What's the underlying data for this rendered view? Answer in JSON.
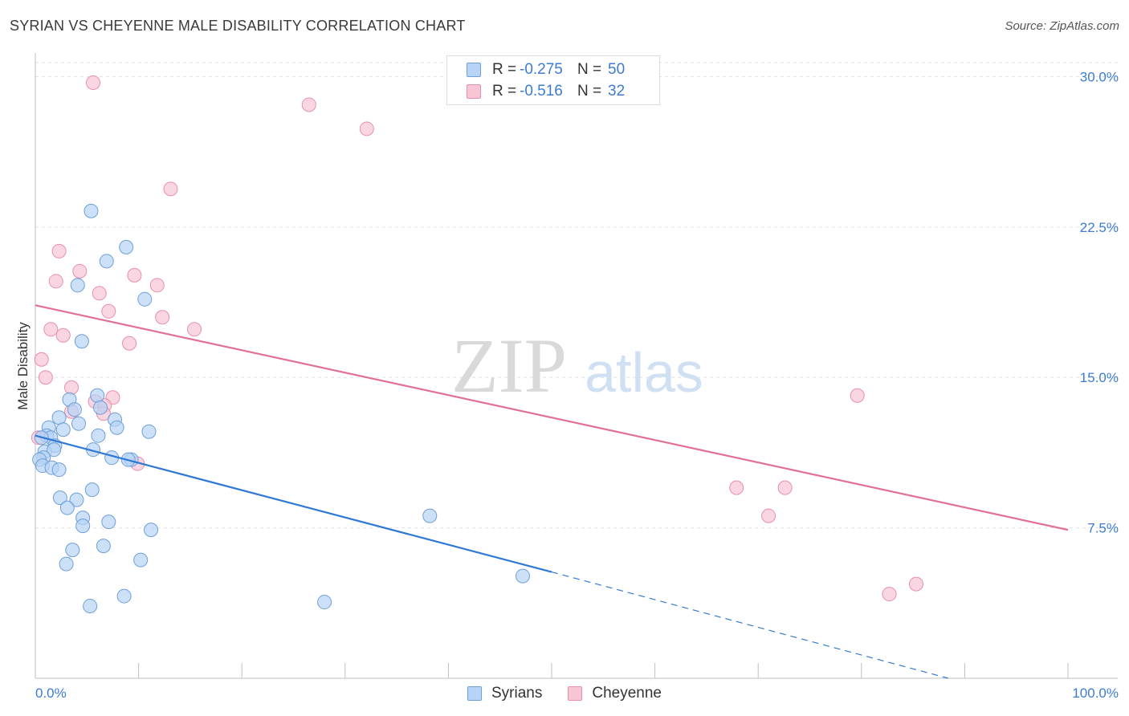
{
  "header": {
    "title": "SYRIAN VS CHEYENNE MALE DISABILITY CORRELATION CHART",
    "source": "Source: ZipAtlas.com"
  },
  "legend": {
    "rows": [
      {
        "r_label": "R =",
        "r_value": "-0.275",
        "n_label": "N =",
        "n_value": "50"
      },
      {
        "r_label": "R =",
        "r_value": "-0.516",
        "n_label": "N =",
        "n_value": "32"
      }
    ],
    "bottom": [
      "Syrians",
      "Cheyenne"
    ]
  },
  "chart_data": {
    "type": "scatter",
    "title": "SYRIAN VS CHEYENNE MALE DISABILITY CORRELATION CHART",
    "xlabel": "",
    "ylabel": "Male Disability",
    "x_tick_labels": [
      "0.0%",
      "100.0%"
    ],
    "y_tick_labels": [
      "7.5%",
      "15.0%",
      "22.5%",
      "30.0%"
    ],
    "y_ticks": [
      7.5,
      15.0,
      22.5,
      30.0
    ],
    "xlim": [
      0,
      100
    ],
    "ylim": [
      0,
      30.7
    ],
    "grid": true,
    "legend_placement": "top-center",
    "watermark": {
      "text_dark": "ZIP",
      "text_light": "atlas"
    },
    "colors": {
      "syrians_fill": "#b7d3f5",
      "syrians_stroke": "#6f9fd8",
      "syrians_line": "#2f78d4",
      "cheyenne_fill": "#f8c5d5",
      "cheyenne_stroke": "#e88fab",
      "cheyenne_line": "#e07098",
      "axis_text": "#3d7bd1",
      "grid": "#e3e3e3"
    },
    "series": [
      {
        "name": "Syrians",
        "r": -0.275,
        "n": 50,
        "trend": {
          "x0": 0,
          "y0": 12.1,
          "x1": 50,
          "y1": 5.3,
          "dash_to_x": 100,
          "dash_to_y": -1.6
        },
        "points": [
          [
            5.4,
            23.3
          ],
          [
            8.8,
            21.5
          ],
          [
            6.9,
            20.8
          ],
          [
            4.1,
            19.6
          ],
          [
            10.6,
            18.9
          ],
          [
            4.5,
            16.8
          ],
          [
            3.3,
            13.9
          ],
          [
            6.0,
            14.1
          ],
          [
            3.8,
            13.4
          ],
          [
            6.3,
            13.5
          ],
          [
            1.3,
            12.5
          ],
          [
            7.7,
            12.9
          ],
          [
            2.3,
            13.0
          ],
          [
            7.9,
            12.5
          ],
          [
            2.7,
            12.4
          ],
          [
            11.0,
            12.3
          ],
          [
            4.2,
            12.7
          ],
          [
            1.1,
            12.1
          ],
          [
            1.5,
            12.0
          ],
          [
            0.6,
            12.0
          ],
          [
            6.1,
            12.1
          ],
          [
            1.9,
            11.6
          ],
          [
            0.9,
            11.3
          ],
          [
            1.8,
            11.4
          ],
          [
            5.6,
            11.4
          ],
          [
            0.8,
            11.0
          ],
          [
            0.4,
            10.9
          ],
          [
            7.4,
            11.0
          ],
          [
            9.3,
            10.9
          ],
          [
            9.0,
            10.9
          ],
          [
            0.7,
            10.6
          ],
          [
            1.6,
            10.5
          ],
          [
            2.3,
            10.4
          ],
          [
            5.5,
            9.4
          ],
          [
            2.4,
            9.0
          ],
          [
            4.0,
            8.9
          ],
          [
            3.1,
            8.5
          ],
          [
            38.2,
            8.1
          ],
          [
            4.6,
            8.0
          ],
          [
            7.1,
            7.8
          ],
          [
            4.6,
            7.6
          ],
          [
            11.2,
            7.4
          ],
          [
            6.6,
            6.6
          ],
          [
            3.6,
            6.4
          ],
          [
            10.2,
            5.9
          ],
          [
            3.0,
            5.7
          ],
          [
            47.2,
            5.1
          ],
          [
            8.6,
            4.1
          ],
          [
            28.0,
            3.8
          ],
          [
            5.3,
            3.6
          ]
        ]
      },
      {
        "name": "Cheyenne",
        "r": -0.516,
        "n": 32,
        "trend": {
          "x0": 0,
          "y0": 18.6,
          "x1": 100,
          "y1": 7.4
        },
        "points": [
          [
            5.6,
            29.7
          ],
          [
            26.5,
            28.6
          ],
          [
            32.1,
            27.4
          ],
          [
            13.1,
            24.4
          ],
          [
            2.3,
            21.3
          ],
          [
            4.3,
            20.3
          ],
          [
            9.6,
            20.1
          ],
          [
            2.0,
            19.8
          ],
          [
            11.8,
            19.6
          ],
          [
            6.2,
            19.2
          ],
          [
            7.1,
            18.3
          ],
          [
            12.3,
            18.0
          ],
          [
            15.4,
            17.4
          ],
          [
            1.5,
            17.4
          ],
          [
            2.7,
            17.1
          ],
          [
            9.1,
            16.7
          ],
          [
            0.6,
            15.9
          ],
          [
            1.0,
            15.0
          ],
          [
            3.5,
            14.5
          ],
          [
            7.5,
            14.0
          ],
          [
            5.8,
            13.8
          ],
          [
            6.7,
            13.6
          ],
          [
            3.5,
            13.3
          ],
          [
            6.6,
            13.2
          ],
          [
            79.6,
            14.1
          ],
          [
            0.3,
            12.0
          ],
          [
            9.9,
            10.7
          ],
          [
            67.9,
            9.5
          ],
          [
            72.6,
            9.5
          ],
          [
            71.0,
            8.1
          ],
          [
            85.3,
            4.7
          ],
          [
            82.7,
            4.2
          ]
        ]
      }
    ]
  }
}
